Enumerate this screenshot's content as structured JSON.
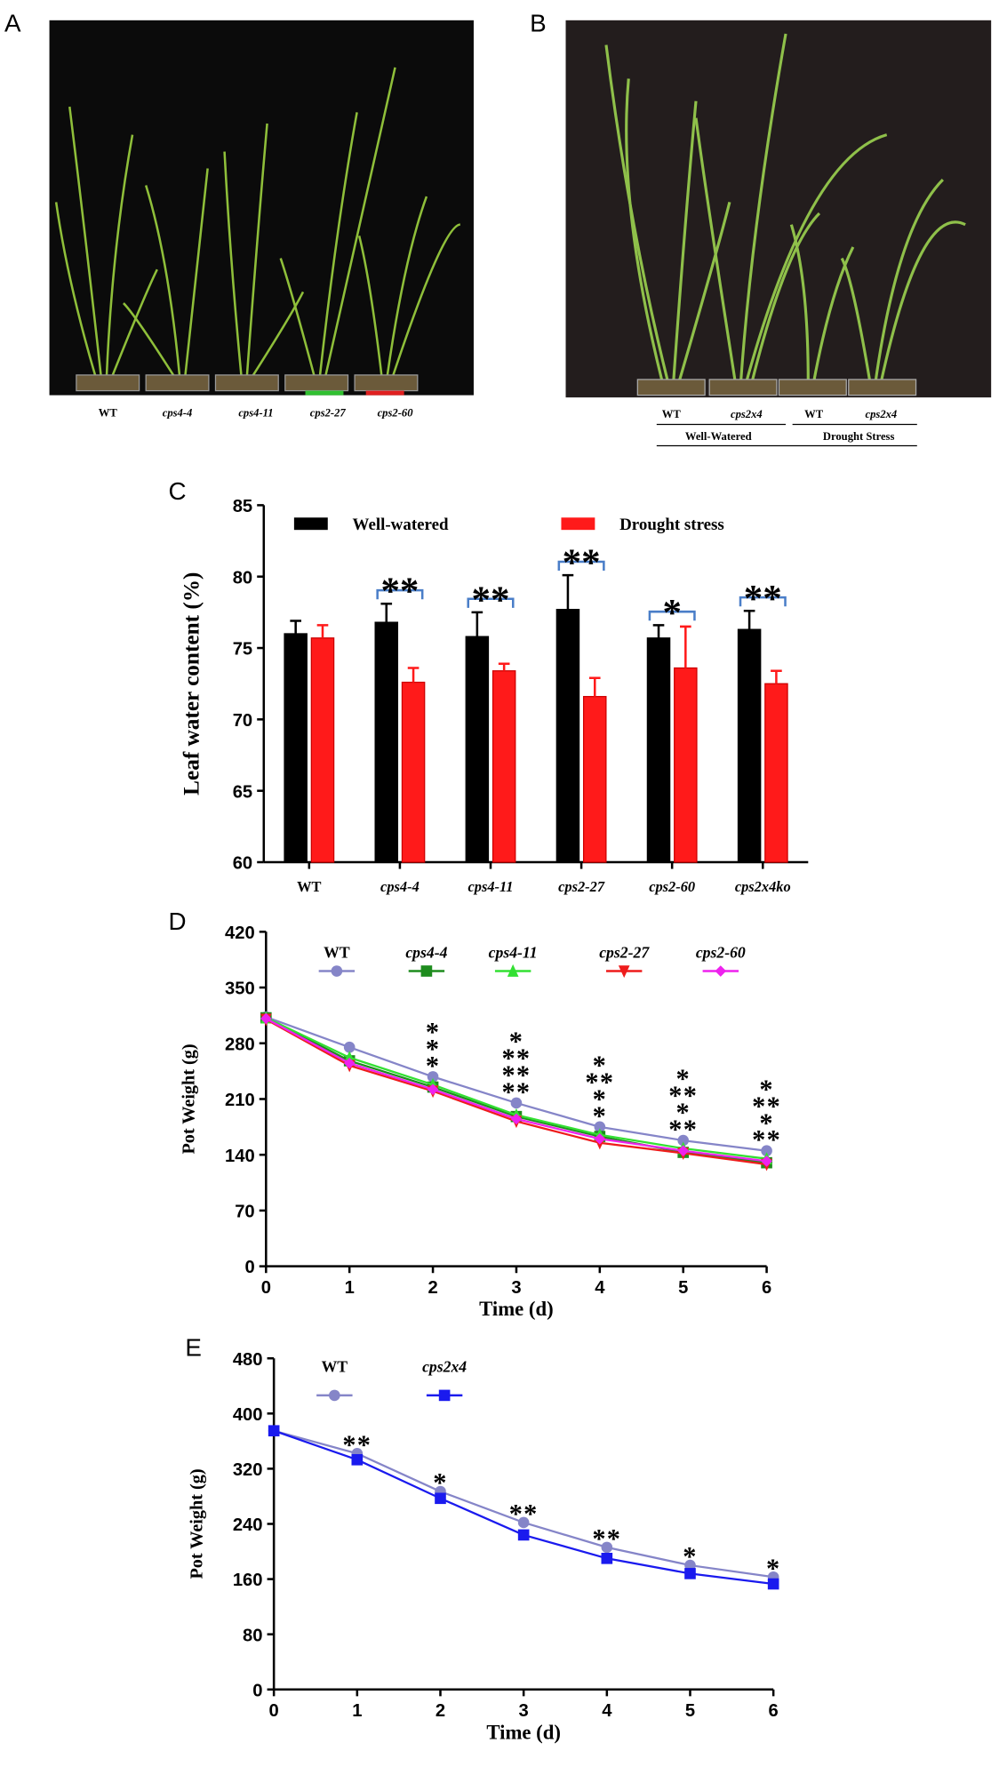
{
  "panels": {
    "a": {
      "label": "A",
      "captions": [
        "WT",
        "cps4-4",
        "cps4-11",
        "cps2-27",
        "cps2-60"
      ]
    },
    "b": {
      "label": "B",
      "captions": [
        "WT",
        "cps2x4",
        "WT",
        "cps2x4"
      ],
      "groups": [
        "Well-Watered",
        "Drought Stress"
      ]
    }
  },
  "chart_data": [
    {
      "type": "bar",
      "panel": "C",
      "ylabel": "Leaf water content (%)",
      "categories": [
        "WT",
        "cps4-4",
        "cps4-11",
        "cps2-27",
        "cps2-60",
        "cps2x4ko"
      ],
      "series": [
        {
          "name": "Well-watered",
          "color": "#000000",
          "values": [
            76.0,
            76.8,
            75.8,
            77.7,
            75.7,
            76.3
          ],
          "errors": [
            0.9,
            1.3,
            1.7,
            2.4,
            0.9,
            1.3
          ]
        },
        {
          "name": "Drought stress",
          "color": "#ff1a1a",
          "values": [
            75.7,
            72.6,
            73.4,
            71.6,
            73.6,
            72.5
          ],
          "errors": [
            0.9,
            1.0,
            0.5,
            1.3,
            2.9,
            0.9
          ]
        }
      ],
      "annotations": [
        {
          "category": 1,
          "text": "**"
        },
        {
          "category": 2,
          "text": "**"
        },
        {
          "category": 3,
          "text": "**"
        },
        {
          "category": 4,
          "text": "*"
        },
        {
          "category": 5,
          "text": "**"
        }
      ],
      "ylim": [
        60,
        85
      ],
      "yticks": [
        60,
        65,
        70,
        75,
        80,
        85
      ]
    },
    {
      "type": "line",
      "panel": "D",
      "ylabel": "Pot Weight (g)",
      "xlabel": "Time (d)",
      "x": [
        0,
        1,
        2,
        3,
        4,
        5,
        6
      ],
      "series": [
        {
          "name": "WT",
          "color": "#8585c8",
          "marker": "circle",
          "values": [
            313,
            275,
            238,
            205,
            175,
            158,
            145
          ]
        },
        {
          "name": "cps4-4",
          "color": "#1e8c1e",
          "marker": "square",
          "values": [
            312,
            258,
            225,
            188,
            163,
            143,
            130
          ]
        },
        {
          "name": "cps4-11",
          "color": "#33e033",
          "marker": "triangle",
          "values": [
            312,
            262,
            228,
            190,
            165,
            148,
            135
          ]
        },
        {
          "name": "cps2-27",
          "color": "#ee1c1c",
          "marker": "triangle-down",
          "values": [
            310,
            252,
            220,
            182,
            155,
            142,
            128
          ]
        },
        {
          "name": "cps2-60",
          "color": "#ee22ee",
          "marker": "diamond",
          "values": [
            311,
            255,
            222,
            185,
            160,
            145,
            132
          ]
        }
      ],
      "annotations": [
        {
          "x": 2,
          "text": "*",
          "color": "#ee22ee"
        },
        {
          "x": 2,
          "text": "*",
          "color": "#ee1c1c"
        },
        {
          "x": 2,
          "text": "*",
          "color": "#33e033"
        },
        {
          "x": 3,
          "text": "*",
          "color": "#ee22ee"
        },
        {
          "x": 3,
          "text": "**",
          "color": "#ee1c1c"
        },
        {
          "x": 3,
          "text": "**",
          "color": "#33e033"
        },
        {
          "x": 3,
          "text": "**",
          "color": "#1e9c5c"
        },
        {
          "x": 4,
          "text": "*",
          "color": "#ee22ee"
        },
        {
          "x": 4,
          "text": "**",
          "color": "#ee1c1c"
        },
        {
          "x": 4,
          "text": "*",
          "color": "#33e033"
        },
        {
          "x": 4,
          "text": "*",
          "color": "#1e9c5c"
        },
        {
          "x": 5,
          "text": "*",
          "color": "#ee22ee"
        },
        {
          "x": 5,
          "text": "**",
          "color": "#ee1c1c"
        },
        {
          "x": 5,
          "text": "*",
          "color": "#33e033"
        },
        {
          "x": 5,
          "text": "**",
          "color": "#1e9c5c"
        },
        {
          "x": 6,
          "text": "*",
          "color": "#ee22ee"
        },
        {
          "x": 6,
          "text": "**",
          "color": "#ee1c1c"
        },
        {
          "x": 6,
          "text": "*",
          "color": "#33e033"
        },
        {
          "x": 6,
          "text": "**",
          "color": "#1e9c5c"
        }
      ],
      "xlim": [
        0,
        6
      ],
      "xticks": [
        0,
        1,
        2,
        3,
        4,
        5,
        6
      ],
      "ylim": [
        0,
        420
      ],
      "yticks": [
        0,
        70,
        140,
        210,
        280,
        350,
        420
      ]
    },
    {
      "type": "line",
      "panel": "E",
      "ylabel": "Pot Weight (g)",
      "xlabel": "Time (d)",
      "x": [
        0,
        1,
        2,
        3,
        4,
        5,
        6
      ],
      "series": [
        {
          "name": "WT",
          "color": "#8585c8",
          "marker": "circle",
          "values": [
            375,
            342,
            287,
            242,
            206,
            180,
            163
          ]
        },
        {
          "name": "cps2x4",
          "color": "#1a1aee",
          "marker": "square",
          "values": [
            375,
            333,
            277,
            224,
            190,
            168,
            153
          ]
        }
      ],
      "annotations": [
        {
          "x": 1,
          "text": "**",
          "color": "#1a1aee"
        },
        {
          "x": 2,
          "text": "*",
          "color": "#1a1aee"
        },
        {
          "x": 3,
          "text": "**",
          "color": "#1a1aee"
        },
        {
          "x": 4,
          "text": "**",
          "color": "#1a1aee"
        },
        {
          "x": 5,
          "text": "*",
          "color": "#1a1aee"
        },
        {
          "x": 6,
          "text": "*",
          "color": "#1a1aee"
        }
      ],
      "xlim": [
        0,
        6
      ],
      "xticks": [
        0,
        1,
        2,
        3,
        4,
        5,
        6
      ],
      "ylim": [
        0,
        480
      ],
      "yticks": [
        0,
        80,
        160,
        240,
        320,
        400,
        480
      ]
    }
  ]
}
